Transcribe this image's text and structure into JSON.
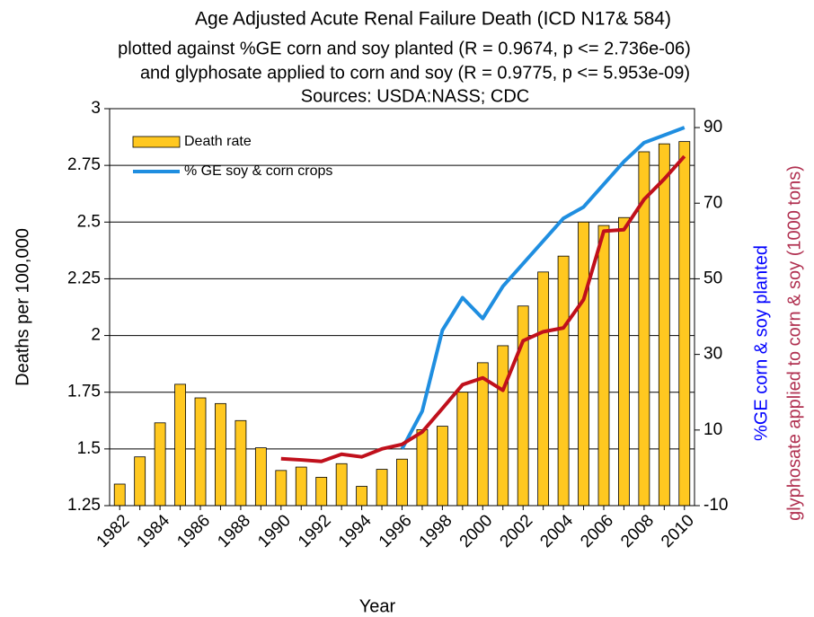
{
  "chart_data": {
    "type": "bar",
    "title": "Age Adjusted Acute Renal Failure Death (ICD N17& 584)",
    "subtitle": [
      "plotted against %GE corn and soy planted (R = 0.9674, p <= 2.736e-06)",
      "and glyphosate applied to corn and soy (R = 0.9775, p <= 5.953e-09)",
      "Sources: USDA:NASS; CDC"
    ],
    "x_label": "Year",
    "y_label": "Deaths per 100,000",
    "y2_label": "%GE corn & soy planted",
    "y2_label_color": "#0000ff",
    "y3_label": "glyphosate applied to corn & soy (1000 tons)",
    "y3_label_color": "#b03050",
    "categories": [
      "1982",
      null,
      "1984",
      null,
      "1986",
      null,
      "1988",
      null,
      "1990",
      null,
      "1992",
      null,
      "1994",
      null,
      "1996",
      null,
      "1998",
      null,
      "2000",
      null,
      "2002",
      null,
      "2004",
      null,
      "2006",
      null,
      "2008",
      null,
      "2010"
    ],
    "series": [
      {
        "name": "Death rate",
        "type": "bar",
        "color": "#ffc820",
        "values": [
          1.345,
          1.465,
          1.615,
          1.785,
          1.725,
          1.7,
          1.625,
          1.505,
          1.405,
          1.42,
          1.375,
          1.435,
          1.335,
          1.41,
          1.455,
          1.585,
          1.6,
          1.75,
          1.88,
          1.955,
          2.13,
          2.28,
          2.35,
          2.5,
          2.485,
          2.52,
          2.81,
          2.845,
          2.855
        ]
      },
      {
        "name": "% GE soy & corn crops",
        "type": "line",
        "axis": "y2",
        "color": "#1f8ee0",
        "values": [
          null,
          null,
          null,
          null,
          null,
          null,
          null,
          null,
          null,
          null,
          null,
          null,
          null,
          null,
          5,
          15,
          36.4,
          45,
          39.5,
          48,
          54,
          60,
          66,
          69,
          75,
          81,
          86,
          88,
          90
        ]
      },
      {
        "type": "line",
        "axis": "y2",
        "color": "#c0101c",
        "values": [
          null,
          null,
          null,
          null,
          null,
          null,
          null,
          null,
          2.4,
          2.1,
          1.7,
          3.6,
          2.9,
          5,
          6.2,
          9.5,
          15.7,
          22,
          23.8,
          20.5,
          33.6,
          36,
          37,
          44.5,
          62.6,
          63,
          71,
          76.4,
          82.4
        ]
      }
    ],
    "ylim": [
      1.25,
      3
    ],
    "yticks": [
      1.25,
      1.5,
      1.75,
      2,
      2.25,
      2.5,
      2.75,
      3
    ],
    "y2lim": [
      -10,
      95
    ],
    "y2ticks": [
      -10,
      10,
      30,
      50,
      70,
      90
    ],
    "grid": true,
    "legend": "top-left"
  }
}
